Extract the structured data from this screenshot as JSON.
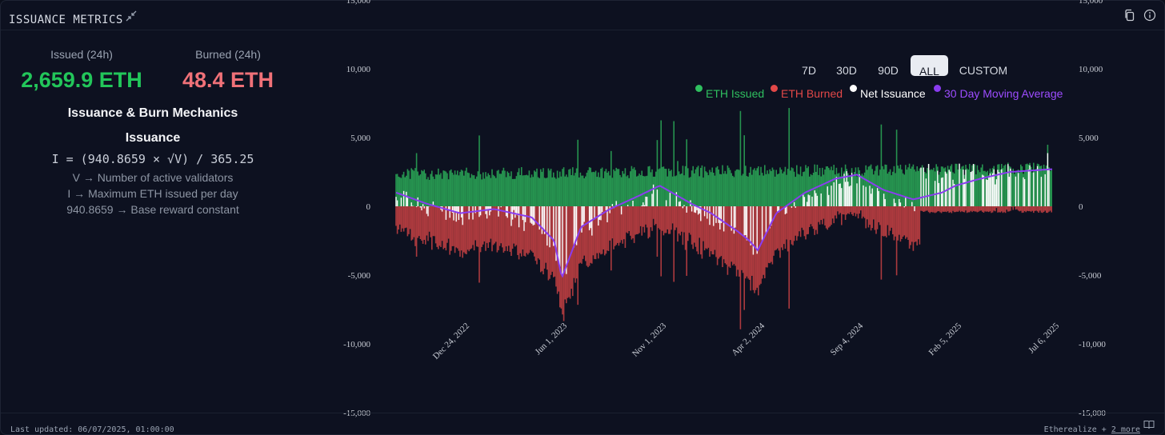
{
  "header": {
    "title": "ISSUANCE METRICS"
  },
  "stats": {
    "issued_label": "Issued (24h)",
    "issued_value": "2,659.9 ETH",
    "burned_label": "Burned (24h)",
    "burned_value": "48.4 ETH"
  },
  "mechanics": {
    "title": "Issuance & Burn Mechanics",
    "subtitle": "Issuance",
    "formula": "I = (940.8659 × √V) / 365.25",
    "legend": [
      "V → Number of active validators",
      "I → Maximum ETH issued per day",
      "940.8659 → Base reward constant"
    ]
  },
  "range_buttons": [
    "7D",
    "30D",
    "90D",
    "ALL",
    "CUSTOM"
  ],
  "selected_range": "ALL",
  "colors": {
    "issued": "#2fbf5f",
    "burned": "#e24848",
    "net": "#ffffff",
    "moving_average": "#8a3cf0",
    "issued_value_text": "#22c65a",
    "burned_value_text": "#f07178"
  },
  "chart_data": {
    "type": "bar",
    "legend_position": "top-right",
    "series": [
      {
        "name": "ETH Issued"
      },
      {
        "name": "ETH Burned"
      },
      {
        "name": "Net Issuance"
      },
      {
        "name": "30 Day Moving Average"
      }
    ],
    "x_ticks": [
      "Dec 24, 2022",
      "Jun 1, 2023",
      "Nov 1, 2023",
      "Apr 2, 2024",
      "Sep 4, 2024",
      "Feb 5, 2025",
      "Jul 6, 2025"
    ],
    "y_ticks": [
      "15,000",
      "10,000",
      "5,000",
      "0",
      "-5,000",
      "-10,000",
      "-15,000"
    ],
    "y_values": [
      15000,
      10000,
      5000,
      0,
      -5000,
      -10000,
      -15000
    ],
    "ylim": [
      -15000,
      15000
    ],
    "x_range": [
      "2022-09-15",
      "2025-07-06"
    ],
    "moving_average_points": [
      [
        "2022-09-15",
        1000
      ],
      [
        "2022-11-01",
        200
      ],
      [
        "2022-12-24",
        -500
      ],
      [
        "2023-02-15",
        -200
      ],
      [
        "2023-04-15",
        -800
      ],
      [
        "2023-05-20",
        -2500
      ],
      [
        "2023-06-01",
        -5200
      ],
      [
        "2023-07-01",
        -1500
      ],
      [
        "2023-08-15",
        -200
      ],
      [
        "2023-10-01",
        800
      ],
      [
        "2023-11-01",
        1500
      ],
      [
        "2023-12-20",
        200
      ],
      [
        "2024-01-20",
        -500
      ],
      [
        "2024-03-01",
        -1800
      ],
      [
        "2024-03-20",
        -2500
      ],
      [
        "2024-04-02",
        -3200
      ],
      [
        "2024-05-01",
        -500
      ],
      [
        "2024-06-15",
        1000
      ],
      [
        "2024-08-01",
        2000
      ],
      [
        "2024-09-04",
        2300
      ],
      [
        "2024-10-15",
        1200
      ],
      [
        "2024-12-01",
        500
      ],
      [
        "2025-01-15",
        1000
      ],
      [
        "2025-02-05",
        1500
      ],
      [
        "2025-03-15",
        2000
      ],
      [
        "2025-05-01",
        2500
      ],
      [
        "2025-07-06",
        2700
      ]
    ]
  },
  "footer": {
    "updated": "Last updated: 06/07/2025, 01:00:00",
    "credits": "Etherealize +",
    "more_link": "2 more"
  }
}
